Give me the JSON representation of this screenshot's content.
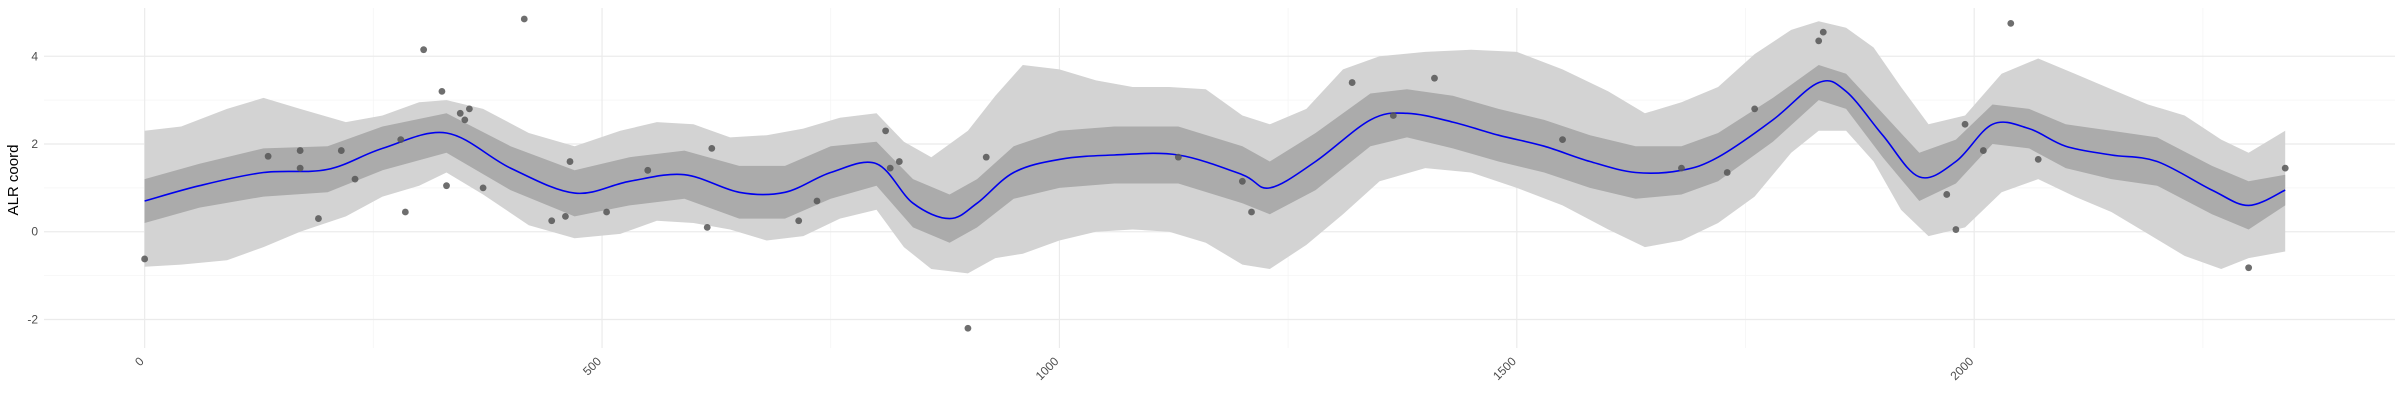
{
  "chart_data": {
    "type": "line",
    "title": "",
    "xlabel": "",
    "ylabel": "ALR coord",
    "xlim": [
      -110,
      2460
    ],
    "ylim": [
      -2.65,
      5.1
    ],
    "x_ticks": [
      0,
      500,
      1000,
      1500,
      2000
    ],
    "x_tick_labels": [
      "0",
      "500",
      "1000",
      "1500",
      "2000"
    ],
    "x_minor_ticks": [
      250,
      750,
      1250,
      1750,
      2250
    ],
    "y_ticks": [
      -2,
      0,
      2,
      4
    ],
    "y_tick_labels": [
      "-2",
      "0",
      "2",
      "4"
    ],
    "y_minor_ticks": [
      -1,
      1,
      3
    ],
    "grid": true,
    "legend": "none",
    "colors": {
      "line": "#0000ee",
      "outer_band": "#d3d3d3",
      "inner_band": "#ababab",
      "points": "#555555",
      "grid_major": "#ebebeb",
      "grid_minor": "#f5f5f5"
    },
    "series": [
      {
        "role": "mean",
        "x": [
          0,
          60,
          130,
          200,
          260,
          330,
          400,
          470,
          530,
          590,
          650,
          700,
          750,
          800,
          840,
          880,
          910,
          950,
          1000,
          1060,
          1130,
          1200,
          1230,
          1280,
          1340,
          1380,
          1430,
          1480,
          1530,
          1580,
          1630,
          1680,
          1720,
          1780,
          1830,
          1860,
          1900,
          1940,
          1980,
          2020,
          2060,
          2100,
          2150,
          2200,
          2260,
          2300,
          2340
        ],
        "y": [
          0.7,
          1.05,
          1.35,
          1.42,
          1.9,
          2.25,
          1.45,
          0.88,
          1.15,
          1.3,
          0.9,
          0.9,
          1.35,
          1.55,
          0.65,
          0.3,
          0.65,
          1.35,
          1.65,
          1.75,
          1.75,
          1.3,
          1.0,
          1.6,
          2.55,
          2.7,
          2.5,
          2.2,
          1.95,
          1.6,
          1.35,
          1.4,
          1.7,
          2.55,
          3.4,
          3.2,
          2.2,
          1.25,
          1.6,
          2.45,
          2.35,
          1.95,
          1.75,
          1.6,
          0.95,
          0.6,
          0.95
        ]
      },
      {
        "role": "inner_band_upper",
        "x": [
          0,
          60,
          130,
          200,
          260,
          330,
          400,
          470,
          530,
          590,
          650,
          700,
          750,
          800,
          840,
          880,
          910,
          950,
          1000,
          1060,
          1130,
          1200,
          1230,
          1280,
          1340,
          1380,
          1430,
          1480,
          1530,
          1580,
          1630,
          1680,
          1720,
          1780,
          1830,
          1860,
          1900,
          1940,
          1980,
          2020,
          2060,
          2100,
          2150,
          2200,
          2260,
          2300,
          2340
        ],
        "y": [
          1.2,
          1.55,
          1.9,
          1.95,
          2.4,
          2.7,
          1.95,
          1.4,
          1.7,
          1.85,
          1.5,
          1.5,
          1.95,
          2.05,
          1.2,
          0.85,
          1.2,
          1.95,
          2.3,
          2.4,
          2.4,
          1.95,
          1.6,
          2.25,
          3.15,
          3.25,
          3.1,
          2.8,
          2.55,
          2.2,
          1.95,
          1.95,
          2.25,
          3.05,
          3.8,
          3.6,
          2.7,
          1.8,
          2.1,
          2.9,
          2.8,
          2.45,
          2.3,
          2.15,
          1.5,
          1.15,
          1.3
        ]
      },
      {
        "role": "inner_band_lower",
        "x": [
          0,
          60,
          130,
          200,
          260,
          330,
          400,
          470,
          530,
          590,
          650,
          700,
          750,
          800,
          840,
          880,
          910,
          950,
          1000,
          1060,
          1130,
          1200,
          1230,
          1280,
          1340,
          1380,
          1430,
          1480,
          1530,
          1580,
          1630,
          1680,
          1720,
          1780,
          1830,
          1860,
          1900,
          1940,
          1980,
          2020,
          2060,
          2100,
          2150,
          2200,
          2260,
          2300,
          2340
        ],
        "y": [
          0.2,
          0.55,
          0.8,
          0.9,
          1.4,
          1.8,
          0.95,
          0.35,
          0.6,
          0.75,
          0.3,
          0.3,
          0.75,
          1.05,
          0.1,
          -0.25,
          0.1,
          0.75,
          1.0,
          1.1,
          1.1,
          0.65,
          0.4,
          0.95,
          1.95,
          2.15,
          1.9,
          1.6,
          1.35,
          1.0,
          0.75,
          0.85,
          1.15,
          2.05,
          3.0,
          2.8,
          1.7,
          0.7,
          1.1,
          2.0,
          1.9,
          1.45,
          1.2,
          1.05,
          0.4,
          0.05,
          0.6
        ]
      },
      {
        "role": "outer_band_upper",
        "x": [
          0,
          40,
          90,
          130,
          170,
          220,
          260,
          300,
          330,
          370,
          420,
          470,
          520,
          560,
          600,
          640,
          680,
          720,
          760,
          800,
          830,
          860,
          900,
          930,
          960,
          1000,
          1040,
          1080,
          1120,
          1160,
          1200,
          1230,
          1270,
          1310,
          1350,
          1400,
          1450,
          1500,
          1550,
          1600,
          1640,
          1680,
          1720,
          1760,
          1800,
          1830,
          1860,
          1890,
          1920,
          1950,
          1990,
          2030,
          2070,
          2110,
          2150,
          2190,
          2230,
          2270,
          2300,
          2340
        ],
        "y": [
          2.3,
          2.4,
          2.8,
          3.05,
          2.8,
          2.5,
          2.65,
          2.95,
          3.0,
          2.8,
          2.25,
          1.95,
          2.3,
          2.5,
          2.45,
          2.15,
          2.2,
          2.35,
          2.6,
          2.7,
          2.05,
          1.7,
          2.3,
          3.1,
          3.8,
          3.7,
          3.45,
          3.3,
          3.3,
          3.25,
          2.65,
          2.45,
          2.8,
          3.7,
          4.0,
          4.1,
          4.15,
          4.1,
          3.7,
          3.2,
          2.7,
          2.95,
          3.3,
          4.05,
          4.6,
          4.8,
          4.65,
          4.2,
          3.3,
          2.45,
          2.65,
          3.6,
          3.95,
          3.6,
          3.25,
          2.9,
          2.65,
          2.1,
          1.8,
          2.3
        ]
      },
      {
        "role": "outer_band_lower",
        "x": [
          0,
          40,
          90,
          130,
          170,
          220,
          260,
          300,
          330,
          370,
          420,
          470,
          520,
          560,
          600,
          640,
          680,
          720,
          760,
          800,
          830,
          860,
          900,
          930,
          960,
          1000,
          1040,
          1080,
          1120,
          1160,
          1200,
          1230,
          1270,
          1310,
          1350,
          1400,
          1450,
          1500,
          1550,
          1600,
          1640,
          1680,
          1720,
          1760,
          1800,
          1830,
          1860,
          1890,
          1920,
          1950,
          1990,
          2030,
          2070,
          2110,
          2150,
          2190,
          2230,
          2270,
          2300,
          2340
        ],
        "y": [
          -0.8,
          -0.75,
          -0.65,
          -0.35,
          0.0,
          0.35,
          0.8,
          1.05,
          1.35,
          0.85,
          0.15,
          -0.15,
          -0.05,
          0.25,
          0.2,
          0.05,
          -0.2,
          -0.1,
          0.3,
          0.5,
          -0.35,
          -0.85,
          -0.95,
          -0.6,
          -0.5,
          -0.2,
          0.0,
          0.05,
          0.0,
          -0.25,
          -0.75,
          -0.85,
          -0.3,
          0.4,
          1.15,
          1.45,
          1.35,
          1.0,
          0.6,
          0.05,
          -0.35,
          -0.2,
          0.2,
          0.8,
          1.8,
          2.3,
          2.3,
          1.6,
          0.5,
          -0.1,
          0.1,
          0.9,
          1.2,
          0.8,
          0.45,
          -0.05,
          -0.55,
          -0.85,
          -0.6,
          -0.45
        ]
      }
    ],
    "points": {
      "x": [
        0,
        135,
        170,
        170,
        190,
        215,
        230,
        280,
        285,
        305,
        325,
        330,
        345,
        350,
        355,
        370,
        415,
        445,
        460,
        465,
        505,
        550,
        615,
        620,
        715,
        735,
        810,
        815,
        825,
        900,
        920,
        1130,
        1200,
        1210,
        1320,
        1365,
        1410,
        1550,
        1680,
        1730,
        1760,
        1830,
        1835,
        1970,
        1980,
        1990,
        2010,
        2040,
        2070,
        2300,
        2340
      ],
      "y": [
        -0.62,
        1.72,
        1.85,
        1.45,
        0.3,
        1.85,
        1.2,
        2.1,
        0.45,
        4.15,
        3.2,
        1.05,
        2.7,
        2.55,
        2.8,
        1.0,
        4.85,
        0.25,
        0.35,
        1.6,
        0.45,
        1.4,
        0.1,
        1.9,
        0.25,
        0.7,
        2.3,
        1.45,
        1.6,
        -2.2,
        1.7,
        1.7,
        1.15,
        0.45,
        3.4,
        2.65,
        3.5,
        2.1,
        1.45,
        1.35,
        2.8,
        4.35,
        4.55,
        0.85,
        0.05,
        2.45,
        1.85,
        4.75,
        1.65,
        -0.82,
        1.45
      ]
    }
  }
}
